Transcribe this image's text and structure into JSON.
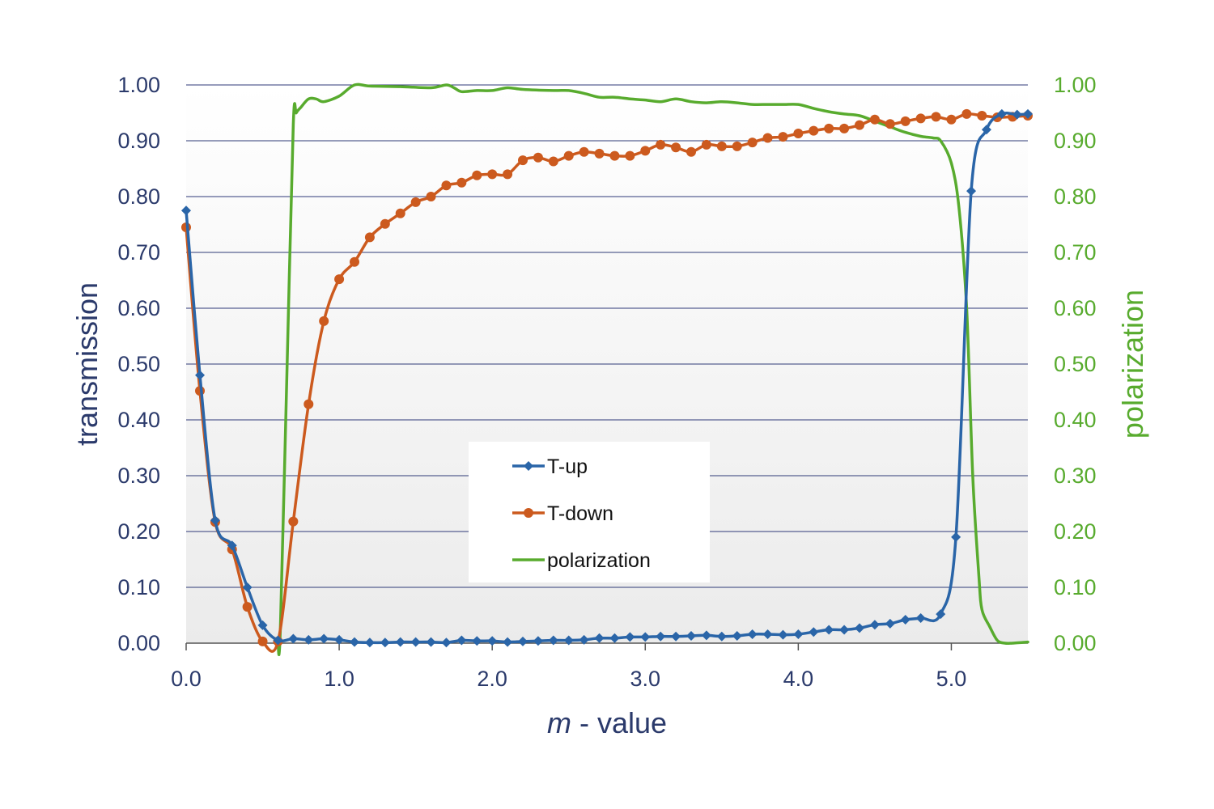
{
  "chart_data": {
    "type": "line",
    "xlabel_italic": "m",
    "xlabel_rest": " - value",
    "ylabel": "transmission",
    "y2label": "polarization",
    "xlim": [
      0,
      5.5
    ],
    "ylim": [
      0,
      1
    ],
    "y2lim": [
      0,
      1
    ],
    "x_ticks": [
      0,
      1,
      2,
      3,
      4,
      5
    ],
    "x_tick_labels": [
      "0.0",
      "1.0",
      "2.0",
      "3.0",
      "4.0",
      "5.0"
    ],
    "y_ticks": [
      0,
      0.1,
      0.2,
      0.3,
      0.4,
      0.5,
      0.6,
      0.7,
      0.8,
      0.9,
      1.0
    ],
    "y_tick_labels": [
      "0.00",
      "0.10",
      "0.20",
      "0.30",
      "0.40",
      "0.50",
      "0.60",
      "0.70",
      "0.80",
      "0.90",
      "1.00"
    ],
    "y2_tick_labels": [
      "0.00",
      "0.10",
      "0.20",
      "0.30",
      "0.40",
      "0.50",
      "0.60",
      "0.70",
      "0.80",
      "0.90",
      "1.00"
    ],
    "grid": "horizontal",
    "legend_position": "center",
    "colors": {
      "t_up": "#2a65a8",
      "t_down": "#cc5a1e",
      "polarization": "#58ab2e",
      "axis_text": "#2b3a6b",
      "grid": "#2f3a78"
    },
    "series": [
      {
        "name": "T-up",
        "axis": "left",
        "marker": "diamond",
        "x": [
          0.0,
          0.09,
          0.19,
          0.3,
          0.4,
          0.5,
          0.6,
          0.7,
          0.8,
          0.9,
          1.0,
          1.1,
          1.2,
          1.3,
          1.4,
          1.5,
          1.6,
          1.7,
          1.8,
          1.9,
          2.0,
          2.1,
          2.2,
          2.3,
          2.4,
          2.5,
          2.6,
          2.7,
          2.8,
          2.9,
          3.0,
          3.1,
          3.2,
          3.3,
          3.4,
          3.5,
          3.6,
          3.7,
          3.8,
          3.9,
          4.0,
          4.1,
          4.2,
          4.3,
          4.4,
          4.5,
          4.6,
          4.7,
          4.8,
          4.93,
          5.03,
          5.13,
          5.23,
          5.33,
          5.43,
          5.5
        ],
        "values": [
          0.775,
          0.48,
          0.22,
          0.175,
          0.1,
          0.032,
          0.005,
          0.008,
          0.006,
          0.008,
          0.006,
          0.002,
          0.001,
          0.001,
          0.002,
          0.002,
          0.002,
          0.001,
          0.005,
          0.004,
          0.004,
          0.002,
          0.003,
          0.004,
          0.005,
          0.005,
          0.006,
          0.009,
          0.009,
          0.011,
          0.011,
          0.012,
          0.012,
          0.013,
          0.014,
          0.012,
          0.013,
          0.016,
          0.016,
          0.015,
          0.016,
          0.02,
          0.024,
          0.024,
          0.027,
          0.033,
          0.035,
          0.042,
          0.045,
          0.052,
          0.19,
          0.81,
          0.92,
          0.948,
          0.947,
          0.948
        ]
      },
      {
        "name": "T-down",
        "axis": "left",
        "marker": "circle",
        "x": [
          0.0,
          0.09,
          0.19,
          0.3,
          0.4,
          0.5,
          0.6,
          0.7,
          0.8,
          0.9,
          1.0,
          1.1,
          1.2,
          1.3,
          1.4,
          1.5,
          1.6,
          1.7,
          1.8,
          1.9,
          2.0,
          2.1,
          2.2,
          2.3,
          2.4,
          2.5,
          2.6,
          2.7,
          2.8,
          2.9,
          3.0,
          3.1,
          3.2,
          3.3,
          3.4,
          3.5,
          3.6,
          3.7,
          3.8,
          3.9,
          4.0,
          4.1,
          4.2,
          4.3,
          4.4,
          4.5,
          4.6,
          4.7,
          4.8,
          4.9,
          5.0,
          5.1,
          5.2,
          5.3,
          5.4,
          5.5
        ],
        "values": [
          0.745,
          0.452,
          0.217,
          0.168,
          0.065,
          0.003,
          0.003,
          0.218,
          0.428,
          0.577,
          0.652,
          0.683,
          0.727,
          0.751,
          0.77,
          0.79,
          0.8,
          0.82,
          0.825,
          0.838,
          0.84,
          0.84,
          0.865,
          0.87,
          0.863,
          0.873,
          0.88,
          0.877,
          0.873,
          0.873,
          0.882,
          0.893,
          0.888,
          0.88,
          0.893,
          0.89,
          0.89,
          0.897,
          0.905,
          0.907,
          0.913,
          0.918,
          0.922,
          0.922,
          0.928,
          0.938,
          0.93,
          0.935,
          0.94,
          0.943,
          0.938,
          0.948,
          0.945,
          0.942,
          0.943,
          0.945
        ]
      },
      {
        "name": "polarization",
        "axis": "right",
        "marker": "none",
        "x": [
          0.6,
          0.615,
          0.66,
          0.7,
          0.72,
          0.75,
          0.8,
          0.85,
          0.9,
          1.0,
          1.1,
          1.2,
          1.4,
          1.6,
          1.7,
          1.75,
          1.8,
          1.9,
          2.0,
          2.1,
          2.2,
          2.4,
          2.5,
          2.6,
          2.7,
          2.8,
          2.9,
          3.0,
          3.1,
          3.2,
          3.3,
          3.4,
          3.5,
          3.6,
          3.7,
          3.8,
          3.9,
          4.0,
          4.1,
          4.2,
          4.3,
          4.4,
          4.5,
          4.6,
          4.7,
          4.8,
          4.88,
          4.93,
          5.0,
          5.05,
          5.1,
          5.14,
          5.18,
          5.2,
          5.25,
          5.3,
          5.35,
          5.4,
          5.5
        ],
        "values": [
          0.0,
          0.02,
          0.5,
          0.93,
          0.95,
          0.96,
          0.975,
          0.975,
          0.97,
          0.98,
          1.0,
          0.998,
          0.997,
          0.995,
          1.0,
          0.995,
          0.988,
          0.99,
          0.99,
          0.995,
          0.992,
          0.99,
          0.99,
          0.985,
          0.978,
          0.978,
          0.975,
          0.973,
          0.97,
          0.975,
          0.97,
          0.968,
          0.97,
          0.968,
          0.965,
          0.965,
          0.965,
          0.965,
          0.958,
          0.952,
          0.948,
          0.945,
          0.935,
          0.925,
          0.915,
          0.908,
          0.905,
          0.9,
          0.86,
          0.78,
          0.6,
          0.3,
          0.12,
          0.06,
          0.03,
          0.005,
          0.0,
          0.0,
          0.002
        ]
      }
    ]
  }
}
